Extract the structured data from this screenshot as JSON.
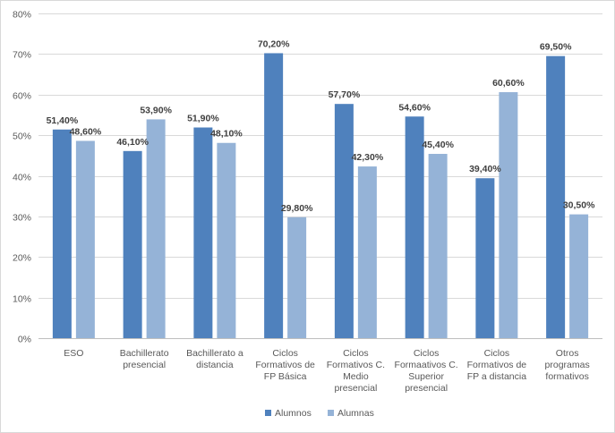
{
  "chart_data": {
    "type": "bar",
    "categories": [
      [
        "ESO"
      ],
      [
        "Bachillerato",
        "presencial"
      ],
      [
        "Bachillerato a",
        "distancia"
      ],
      [
        "Ciclos",
        "Formativos de",
        "FP Básica"
      ],
      [
        "Ciclos",
        "Formativos C.",
        "Medio",
        "presencial"
      ],
      [
        "Ciclos",
        "Formaativos C.",
        "Superior",
        "presencial"
      ],
      [
        "Ciclos",
        "Formativos de",
        "FP a distancia"
      ],
      [
        "Otros",
        "programas",
        "formativos"
      ]
    ],
    "series": [
      {
        "name": "Alumnos",
        "color": "#4f81bd",
        "values": [
          51.4,
          46.1,
          51.9,
          70.2,
          57.7,
          54.6,
          39.4,
          69.5
        ],
        "labels": [
          "51,40%",
          "46,10%",
          "51,90%",
          "70,20%",
          "57,70%",
          "54,60%",
          "39,40%",
          "69,50%"
        ]
      },
      {
        "name": "Alumnas",
        "color": "#95b3d7",
        "values": [
          48.6,
          53.9,
          48.1,
          29.8,
          42.3,
          45.4,
          60.6,
          30.5
        ],
        "labels": [
          "48,60%",
          "53,90%",
          "48,10%",
          "29,80%",
          "42,30%",
          "45,40%",
          "60,60%",
          "30,50%"
        ]
      }
    ],
    "ylim": [
      0,
      80
    ],
    "y_ticks": [
      "0%",
      "10%",
      "20%",
      "30%",
      "40%",
      "50%",
      "60%",
      "70%",
      "80%"
    ],
    "y_tick_values": [
      0,
      10,
      20,
      30,
      40,
      50,
      60,
      70,
      80
    ],
    "grid": true,
    "legend_position": "bottom",
    "title": "",
    "xlabel": "",
    "ylabel": ""
  }
}
